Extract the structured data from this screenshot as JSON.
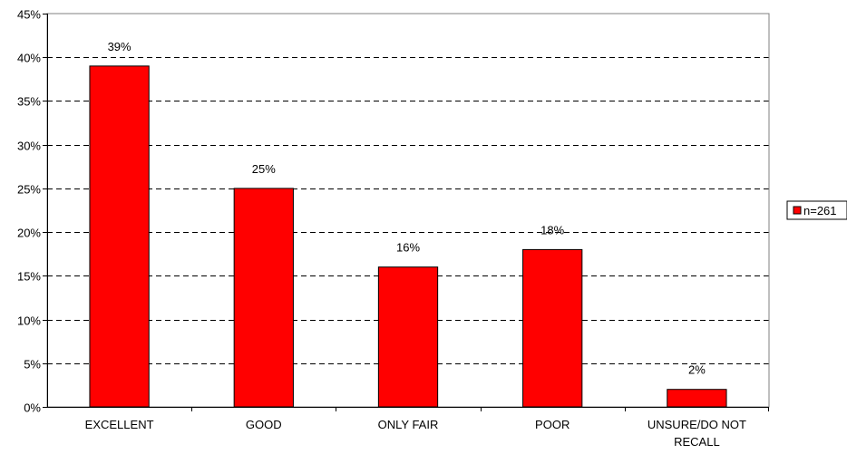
{
  "chart_data": {
    "type": "bar",
    "categories": [
      "EXCELLENT",
      "GOOD",
      "ONLY FAIR",
      "POOR",
      "UNSURE/DO NOT RECALL"
    ],
    "category_lines": [
      [
        "EXCELLENT"
      ],
      [
        "GOOD"
      ],
      [
        "ONLY FAIR"
      ],
      [
        "POOR"
      ],
      [
        "UNSURE/DO NOT",
        "RECALL"
      ]
    ],
    "series": [
      {
        "name": "n=261",
        "values": [
          39,
          25,
          16,
          18,
          2
        ],
        "color": "#ff0000"
      }
    ],
    "data_labels": [
      "39%",
      "25%",
      "16%",
      "18%",
      "2%"
    ],
    "y_ticks": [
      0,
      5,
      10,
      15,
      20,
      25,
      30,
      35,
      40,
      45
    ],
    "y_tick_labels": [
      "0%",
      "5%",
      "10%",
      "15%",
      "20%",
      "25%",
      "30%",
      "35%",
      "40%",
      "45%"
    ],
    "ylim": [
      0,
      45
    ],
    "title": "",
    "xlabel": "",
    "ylabel": "",
    "grid": "dashed horizontal",
    "legend_position": "right"
  }
}
